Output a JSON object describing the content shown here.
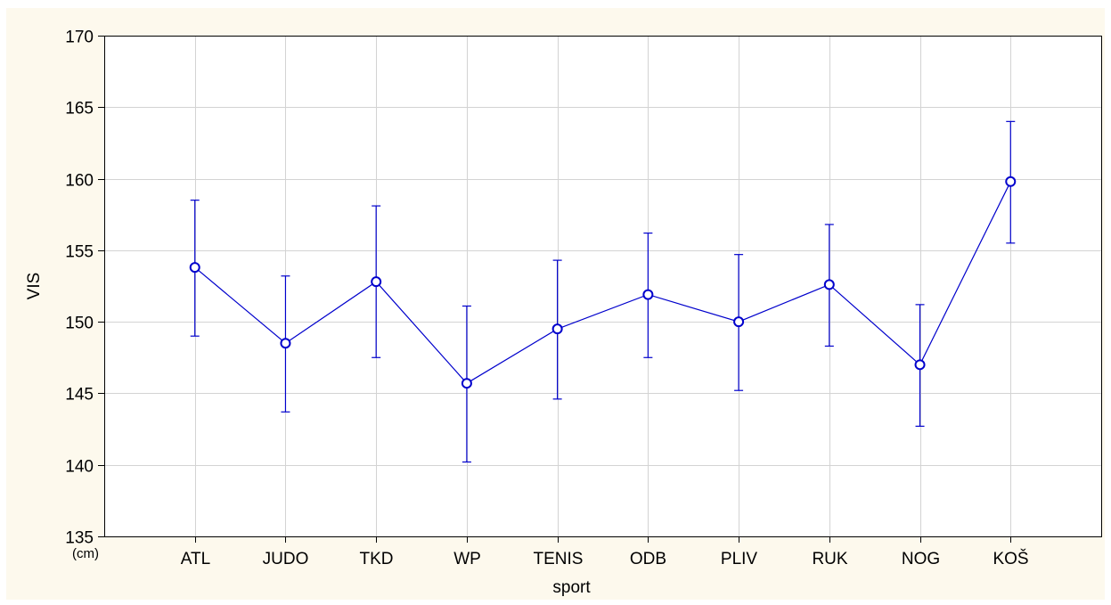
{
  "chart_data": {
    "type": "line",
    "title": "",
    "xlabel": "sport",
    "ylabel": "VIS",
    "y_unit_label": "(cm)",
    "categories": [
      "ATL",
      "JUDO",
      "TKD",
      "WP",
      "TENIS",
      "ODB",
      "PLIV",
      "RUK",
      "NOG",
      "KOŠ"
    ],
    "series": [
      {
        "values": [
          153.8,
          148.5,
          152.8,
          145.7,
          149.5,
          151.9,
          150.0,
          152.6,
          147.0,
          159.8
        ],
        "lower": [
          149.0,
          143.7,
          147.5,
          140.2,
          144.6,
          147.5,
          145.2,
          148.3,
          142.7,
          155.5
        ],
        "upper": [
          158.5,
          153.2,
          158.1,
          151.1,
          154.3,
          156.2,
          154.7,
          156.8,
          151.2,
          164.0
        ]
      }
    ],
    "ylim": [
      135,
      170
    ],
    "yticks": [
      135,
      140,
      145,
      150,
      155,
      160,
      165,
      170
    ],
    "grid": true,
    "line_color": "#0000cc",
    "background_color": "#fdf9ed"
  }
}
